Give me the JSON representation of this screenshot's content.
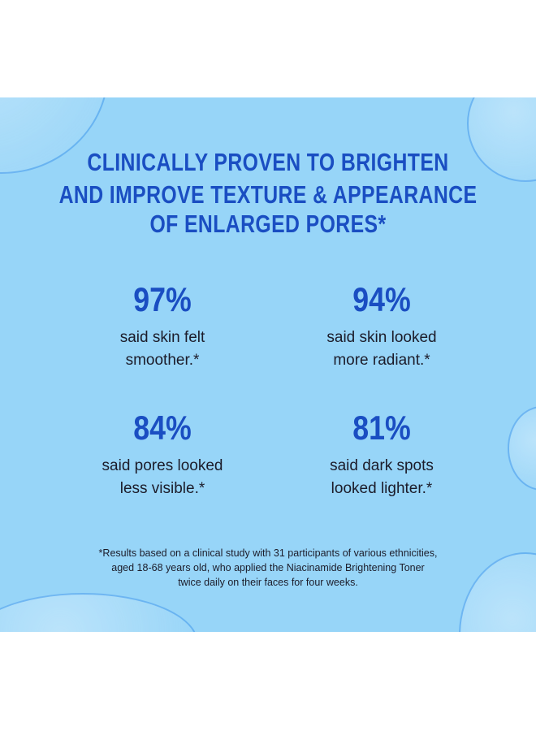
{
  "headline": [
    "CLINICALLY PROVEN TO BRIGHTEN",
    "AND IMPROVE TEXTURE & APPEARANCE",
    "OF ENLARGED PORES*"
  ],
  "stats": [
    {
      "value": "97%",
      "line1": "said skin felt",
      "line2": "smoother.*"
    },
    {
      "value": "94%",
      "line1": "said skin looked",
      "line2": "more radiant.*"
    },
    {
      "value": "84%",
      "line1": "said pores looked",
      "line2": "less visible.*"
    },
    {
      "value": "81%",
      "line1": "said dark spots",
      "line2": "looked lighter.*"
    }
  ],
  "footnote": [
    "*Results based on a clinical study with 31 participants of various ethnicities,",
    "aged 18-68 years old, who applied the Niacinamide Brightening Toner",
    "twice daily on their faces for four weeks."
  ],
  "colors": {
    "background": "#97d5f8",
    "accent": "#1a4ec2"
  }
}
